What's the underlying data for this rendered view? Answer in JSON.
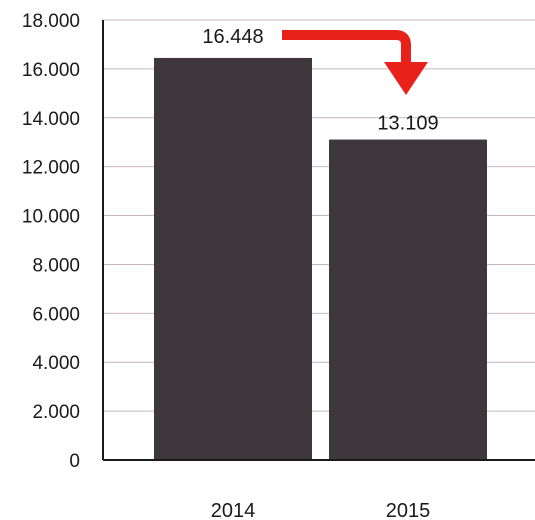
{
  "chart_data": {
    "type": "bar",
    "categories": [
      "2014",
      "2015"
    ],
    "values": [
      16448,
      13109
    ],
    "data_labels": [
      "16.448",
      "13.109"
    ],
    "ylim": [
      0,
      18000
    ],
    "yticks": [
      0,
      2000,
      4000,
      6000,
      8000,
      10000,
      12000,
      14000,
      16000,
      18000
    ],
    "ytick_labels": [
      "0",
      "2.000",
      "4.000",
      "6.000",
      "8.000",
      "10.000",
      "12.000",
      "14.000",
      "16.000",
      "18.000"
    ],
    "grid": true,
    "bar_color": "#3e383c",
    "grid_color": "#c9b4c0",
    "arrow_color": "#e8221b",
    "annotation": "arrow from 2014 value label pointing down to 2015 bar"
  }
}
